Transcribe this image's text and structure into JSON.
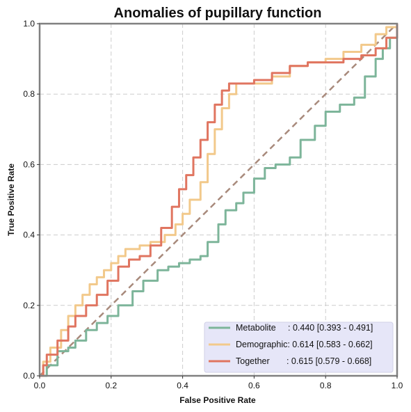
{
  "chart_data": {
    "type": "line",
    "title": "Anomalies of pupillary function",
    "xlabel": "False Positive Rate",
    "ylabel": "True Positive Rate",
    "xlim": [
      0,
      1
    ],
    "ylim": [
      0,
      1
    ],
    "xticks": [
      "0.0",
      "0.2",
      "0.4",
      "0.6",
      "0.8",
      "1.0"
    ],
    "yticks": [
      "0.0",
      "0.2",
      "0.4",
      "0.6",
      "0.8",
      "1.0"
    ],
    "grid": true,
    "legend_position": "lower-right",
    "diagonal_color": "#a88a7c",
    "series": [
      {
        "name": "Metabolite",
        "label": "Metabolite     : 0.440 [0.393 - 0.491]",
        "color": "#7db59a",
        "x": [
          0,
          0.02,
          0.05,
          0.08,
          0.1,
          0.13,
          0.16,
          0.19,
          0.22,
          0.26,
          0.29,
          0.33,
          0.36,
          0.39,
          0.42,
          0.45,
          0.47,
          0.5,
          0.52,
          0.55,
          0.57,
          0.6,
          0.63,
          0.66,
          0.7,
          0.73,
          0.77,
          0.8,
          0.84,
          0.88,
          0.91,
          0.94,
          0.96,
          0.98,
          1.0
        ],
        "y": [
          0,
          0.03,
          0.07,
          0.08,
          0.1,
          0.13,
          0.15,
          0.17,
          0.2,
          0.24,
          0.27,
          0.3,
          0.31,
          0.32,
          0.33,
          0.34,
          0.38,
          0.43,
          0.47,
          0.49,
          0.52,
          0.56,
          0.59,
          0.6,
          0.62,
          0.67,
          0.71,
          0.75,
          0.77,
          0.79,
          0.85,
          0.9,
          0.93,
          0.96,
          1.0
        ]
      },
      {
        "name": "Demographic",
        "label": "Demographic: 0.614 [0.583 - 0.662]",
        "color": "#f2c98b",
        "x": [
          0,
          0.01,
          0.03,
          0.06,
          0.08,
          0.1,
          0.12,
          0.14,
          0.16,
          0.18,
          0.2,
          0.22,
          0.24,
          0.28,
          0.31,
          0.35,
          0.38,
          0.4,
          0.42,
          0.45,
          0.47,
          0.49,
          0.51,
          0.53,
          0.55,
          0.6,
          0.65,
          0.7,
          0.75,
          0.8,
          0.85,
          0.9,
          0.94,
          0.97,
          1.0
        ],
        "y": [
          0,
          0.04,
          0.08,
          0.13,
          0.17,
          0.2,
          0.23,
          0.26,
          0.28,
          0.3,
          0.32,
          0.34,
          0.36,
          0.37,
          0.38,
          0.4,
          0.43,
          0.46,
          0.5,
          0.55,
          0.63,
          0.7,
          0.76,
          0.8,
          0.83,
          0.83,
          0.85,
          0.88,
          0.89,
          0.9,
          0.92,
          0.94,
          0.97,
          0.99,
          1.0
        ]
      },
      {
        "name": "Together",
        "label": "Together       : 0.615 [0.579 - 0.668]",
        "color": "#e07560",
        "x": [
          0,
          0.01,
          0.02,
          0.05,
          0.08,
          0.1,
          0.13,
          0.16,
          0.19,
          0.22,
          0.25,
          0.28,
          0.31,
          0.34,
          0.37,
          0.39,
          0.41,
          0.43,
          0.45,
          0.47,
          0.49,
          0.51,
          0.53,
          0.56,
          0.6,
          0.65,
          0.7,
          0.75,
          0.8,
          0.85,
          0.9,
          0.94,
          0.97,
          1.0
        ],
        "y": [
          0,
          0.03,
          0.06,
          0.1,
          0.14,
          0.17,
          0.2,
          0.23,
          0.27,
          0.31,
          0.33,
          0.34,
          0.37,
          0.42,
          0.48,
          0.53,
          0.57,
          0.62,
          0.67,
          0.72,
          0.77,
          0.81,
          0.83,
          0.83,
          0.84,
          0.86,
          0.88,
          0.89,
          0.89,
          0.9,
          0.91,
          0.93,
          0.96,
          1.0
        ]
      }
    ]
  }
}
